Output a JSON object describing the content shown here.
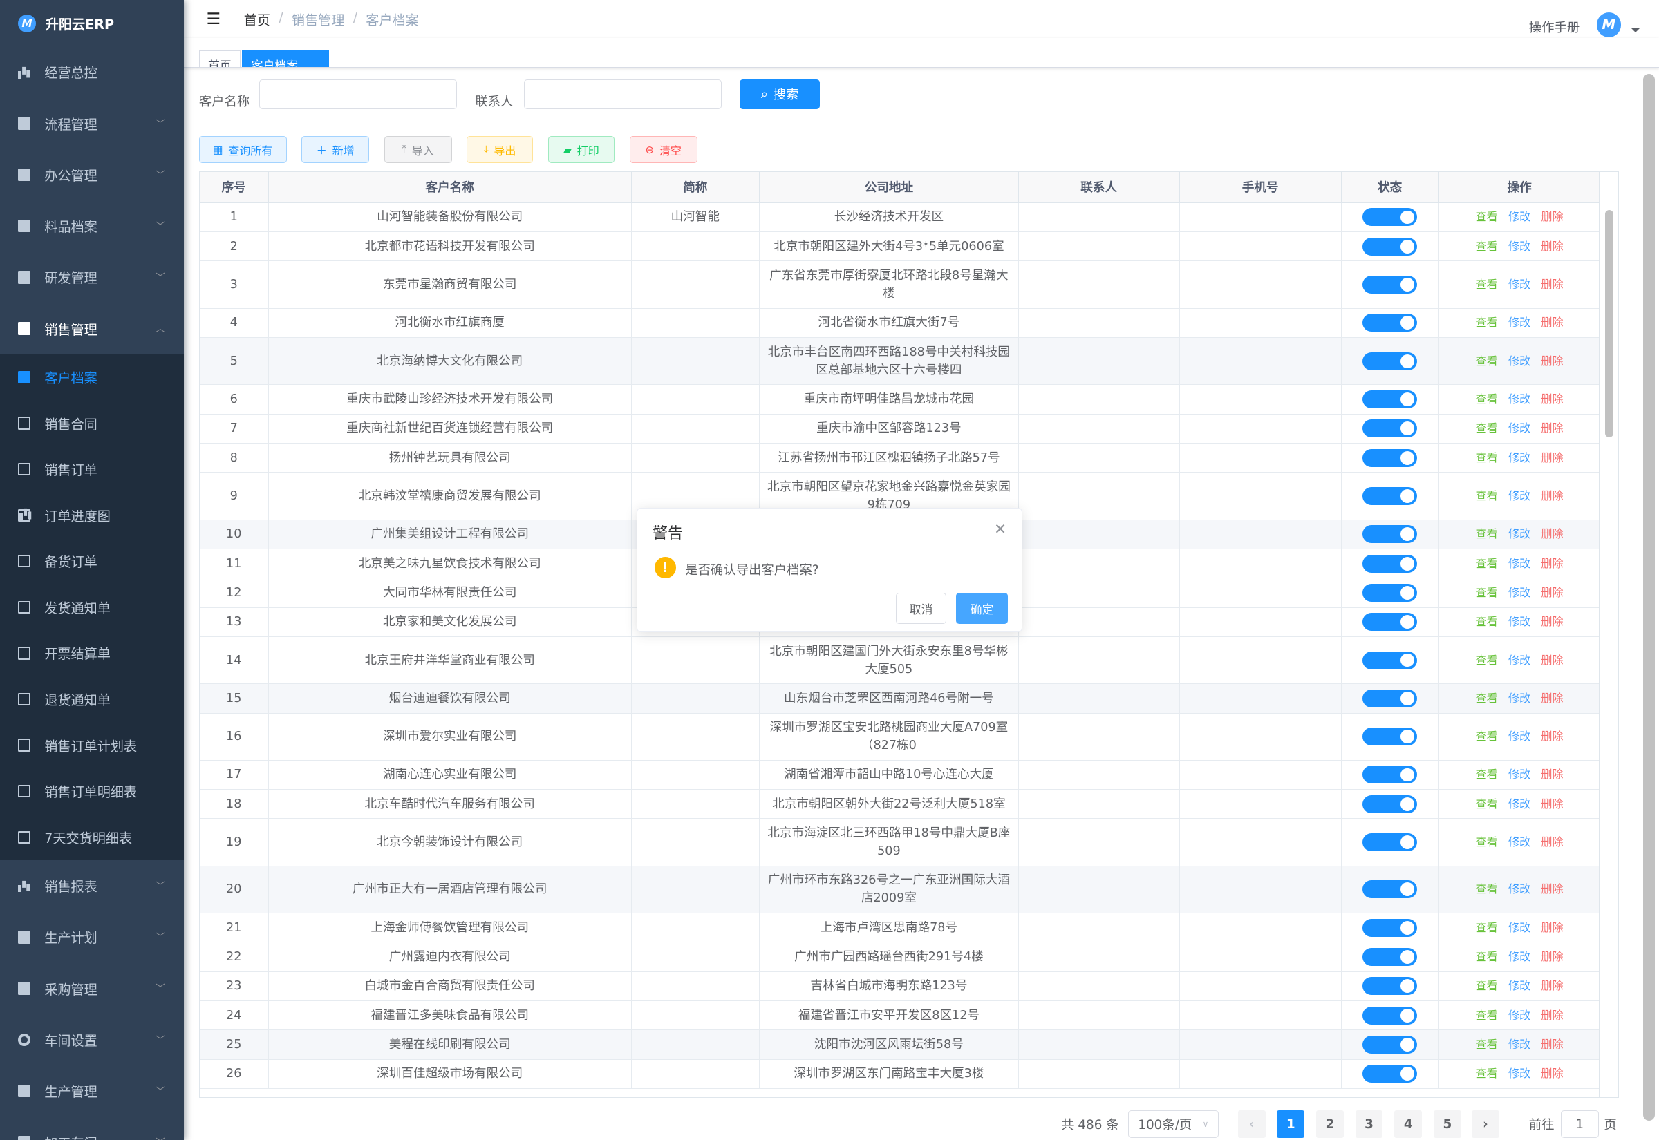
{
  "app": {
    "title": "升阳云ERP",
    "logo_letter": "M"
  },
  "sidebar": {
    "top_items": [
      {
        "label": "经营总控",
        "icon": "bar-chart-icon",
        "chevron": false
      },
      {
        "label": "流程管理",
        "icon": "process-icon",
        "chevron": true
      },
      {
        "label": "办公管理",
        "icon": "office-icon",
        "chevron": true
      },
      {
        "label": "料品档案",
        "icon": "book-icon",
        "chevron": true
      },
      {
        "label": "研发管理",
        "icon": "rd-icon",
        "chevron": true
      },
      {
        "label": "销售管理",
        "icon": "documents-icon",
        "chevron": true,
        "open": true
      }
    ],
    "sub_items": [
      {
        "label": "客户档案",
        "icon": "edit-document-icon",
        "active": true
      },
      {
        "label": "销售合同",
        "icon": "edit-document-icon"
      },
      {
        "label": "销售订单",
        "icon": "table-icon"
      },
      {
        "label": "订单进度图",
        "icon": "bar-chart-icon"
      },
      {
        "label": "备货订单",
        "icon": "table-icon"
      },
      {
        "label": "发货通知单",
        "icon": "table-icon"
      },
      {
        "label": "开票结算单",
        "icon": "table-icon"
      },
      {
        "label": "退货通知单",
        "icon": "table-icon"
      },
      {
        "label": "销售订单计划表",
        "icon": "book-open-icon"
      },
      {
        "label": "销售订单明细表",
        "icon": "book-open-icon"
      },
      {
        "label": "7天交货明细表",
        "icon": "book-open-icon"
      }
    ],
    "bottom_items": [
      {
        "label": "销售报表",
        "icon": "bar-chart-icon"
      },
      {
        "label": "生产计划",
        "icon": "documents-icon"
      },
      {
        "label": "采购管理",
        "icon": "documents-icon"
      },
      {
        "label": "车间设置",
        "icon": "gear-icon"
      },
      {
        "label": "生产管理",
        "icon": "documents-icon"
      },
      {
        "label": "加工车间",
        "icon": "documents-icon"
      }
    ]
  },
  "header": {
    "breadcrumb": [
      "首页",
      "销售管理",
      "客户档案"
    ],
    "manual": "操作手册"
  },
  "tags": [
    "首页",
    "客户档案"
  ],
  "search": {
    "name_label": "客户名称",
    "name_value": "",
    "contact_label": "联系人",
    "contact_value": "",
    "button": "搜索"
  },
  "toolbar": {
    "query_all": "查询所有",
    "add": "新增",
    "import": "导入",
    "export": "导出",
    "print": "打印",
    "clear": "清空"
  },
  "colors": {
    "primary": "#1890ff",
    "sidebar": "#304156",
    "submenu": "#1f2d3d",
    "view": "#67c23a",
    "edit": "#409eff",
    "delete": "#f56c6c",
    "warning": "#ffb800"
  },
  "table": {
    "columns": [
      "序号",
      "客户名称",
      "简称",
      "公司地址",
      "联系人",
      "手机号",
      "状态",
      "操作"
    ],
    "actions": {
      "view": "查看",
      "edit": "修改",
      "delete": "删除"
    },
    "rows": [
      {
        "no": "1",
        "name": "山河智能装备股份有限公司",
        "short": "山河智能",
        "address": "长沙经济技术开发区",
        "enabled": true
      },
      {
        "no": "2",
        "name": "北京都市花语科技开发有限公司",
        "short": "",
        "address": "北京市朝阳区建外大街4号3*5单元0606室",
        "enabled": true
      },
      {
        "no": "3",
        "name": "东莞市星瀚商贸有限公司",
        "short": "",
        "address": "广东省东莞市厚街寮厦北环路北段8号星瀚大楼",
        "enabled": true
      },
      {
        "no": "4",
        "name": "河北衡水市红旗商厦",
        "short": "",
        "address": "河北省衡水市红旗大街7号",
        "enabled": true
      },
      {
        "no": "5",
        "name": "北京海纳博大文化有限公司",
        "short": "",
        "address": "北京市丰台区南四环西路188号中关村科技园区总部基地六区十六号楼四",
        "enabled": true
      },
      {
        "no": "6",
        "name": "重庆市武陵山珍经济技术开发有限公司",
        "short": "",
        "address": "重庆市南坪明佳路昌龙城市花园",
        "enabled": true
      },
      {
        "no": "7",
        "name": "重庆商社新世纪百货连锁经营有限公司",
        "short": "",
        "address": "重庆市渝中区邹容路123号",
        "enabled": true
      },
      {
        "no": "8",
        "name": "扬州钟艺玩具有限公司",
        "short": "",
        "address": "江苏省扬州市邗江区槐泗镇扬子北路57号",
        "enabled": true
      },
      {
        "no": "9",
        "name": "北京韩汶堂禧康商贸发展有限公司",
        "short": "",
        "address": "北京市朝阳区望京花家地金兴路嘉悦金英家园9栋709",
        "enabled": true
      },
      {
        "no": "10",
        "name": "广州集美组设计工程有限公司",
        "short": "",
        "address": "",
        "enabled": true
      },
      {
        "no": "11",
        "name": "北京美之味九星饮食技术有限公司",
        "short": "",
        "address": "",
        "enabled": true
      },
      {
        "no": "12",
        "name": "大同市华林有限责任公司",
        "short": "",
        "address": "",
        "enabled": true
      },
      {
        "no": "13",
        "name": "北京家和美文化发展公司",
        "short": "",
        "address": "",
        "enabled": true
      },
      {
        "no": "14",
        "name": "北京王府井洋华堂商业有限公司",
        "short": "",
        "address": "北京市朝阳区建国门外大街永安东里8号华彬大厦505",
        "enabled": true
      },
      {
        "no": "15",
        "name": "烟台迪迪餐饮有限公司",
        "short": "",
        "address": "山东烟台市芝罘区西南河路46号附一号",
        "enabled": true
      },
      {
        "no": "16",
        "name": "深圳市爱尔实业有限公司",
        "short": "",
        "address": "深圳市罗湖区宝安北路桃园商业大厦A709室（827栋0",
        "enabled": true
      },
      {
        "no": "17",
        "name": "湖南心连心实业有限公司",
        "short": "",
        "address": "湖南省湘潭市韶山中路10号心连心大厦",
        "enabled": true
      },
      {
        "no": "18",
        "name": "北京车酷时代汽车服务有限公司",
        "short": "",
        "address": "北京市朝阳区朝外大街22号泛利大厦518室",
        "enabled": true
      },
      {
        "no": "19",
        "name": "北京今朝装饰设计有限公司",
        "short": "",
        "address": "北京市海淀区北三环西路甲18号中鼎大厦B座509",
        "enabled": true
      },
      {
        "no": "20",
        "name": "广州市正大有一居酒店管理有限公司",
        "short": "",
        "address": "广州市环市东路326号之一广东亚洲国际大酒店2009室",
        "enabled": true
      },
      {
        "no": "21",
        "name": "上海金师傅餐饮管理有限公司",
        "short": "",
        "address": "上海市卢湾区思南路78号",
        "enabled": true
      },
      {
        "no": "22",
        "name": "广州露迪内衣有限公司",
        "short": "",
        "address": "广州市广园西路瑶台西街291号4楼",
        "enabled": true
      },
      {
        "no": "23",
        "name": "白城市金百合商贸有限责任公司",
        "short": "",
        "address": "吉林省白城市海明东路123号",
        "enabled": true
      },
      {
        "no": "24",
        "name": "福建晋江多美味食品有限公司",
        "short": "",
        "address": "福建省晋江市安平开发区8区12号",
        "enabled": true
      },
      {
        "no": "25",
        "name": "美程在线印刷有限公司",
        "short": "",
        "address": "沈阳市沈河区风雨坛街58号",
        "enabled": true
      },
      {
        "no": "26",
        "name": "深圳百佳超级市场有限公司",
        "short": "",
        "address": "深圳市罗湖区东门南路宝丰大厦3楼",
        "enabled": true
      }
    ]
  },
  "pagination": {
    "total": "共 486 条",
    "page_size": "100条/页",
    "pages": [
      "1",
      "2",
      "3",
      "4",
      "5"
    ],
    "current": "1",
    "goto_label": "前往",
    "goto_value": "1",
    "page_unit": "页"
  },
  "dialog": {
    "title": "警告",
    "message": "是否确认导出客户档案?",
    "cancel": "取消",
    "confirm": "确定"
  }
}
